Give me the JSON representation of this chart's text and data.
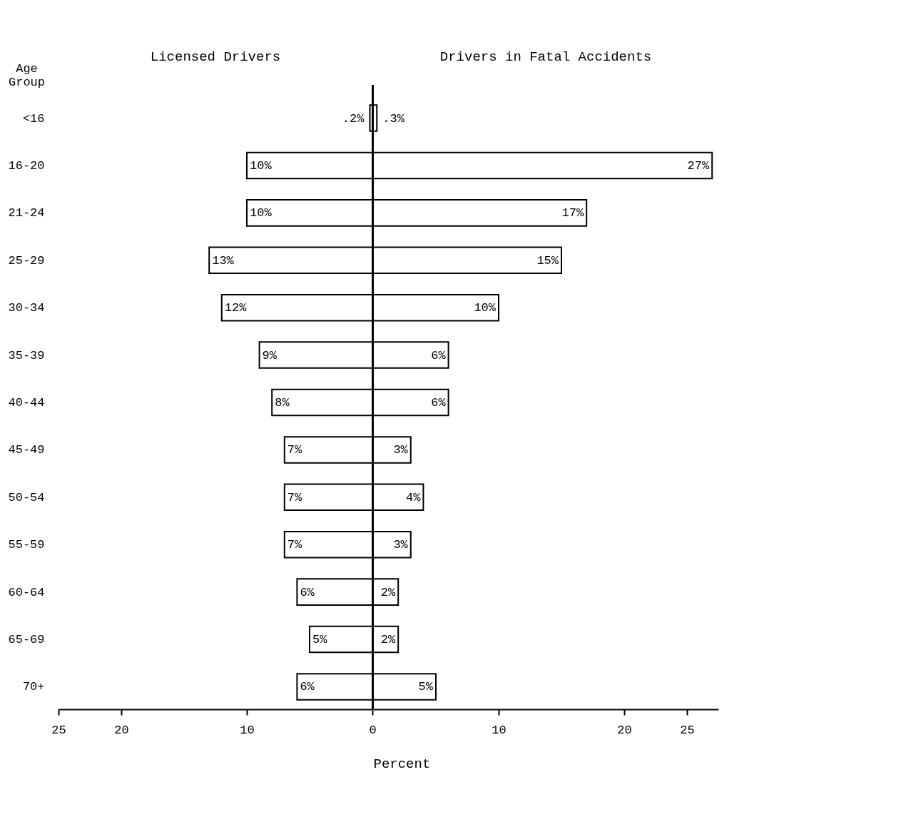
{
  "chart_data": [
    {
      "type": "bar",
      "orientation": "horizontal",
      "title": "Licensed Drivers",
      "ylabel": "Age Group",
      "categories": [
        "<16",
        "16-20",
        "21-24",
        "25-29",
        "30-34",
        "35-39",
        "40-44",
        "45-49",
        "50-54",
        "55-59",
        "60-64",
        "65-69",
        "70+"
      ],
      "values": [
        0.2,
        10,
        10,
        13,
        12,
        9,
        8,
        7,
        7,
        7,
        6,
        5,
        6
      ],
      "value_labels": [
        ".2%",
        "10%",
        "10%",
        "13%",
        "12%",
        "9%",
        "8%",
        "7%",
        "7%",
        "7%",
        "6%",
        "5%",
        "6%"
      ],
      "color": "#ffffff",
      "xlim": [
        25,
        0
      ],
      "xticks": [
        25,
        20,
        10,
        0
      ]
    },
    {
      "type": "bar",
      "orientation": "horizontal",
      "title": "Drivers in Fatal Accidents",
      "xlabel": "Percent",
      "tick_labels": "x",
      "categories": [
        null,
        null,
        null,
        null,
        null,
        null,
        null,
        null,
        null,
        null,
        null,
        null,
        null
      ],
      "values": [
        0.3,
        27,
        17,
        15,
        10,
        6,
        6,
        3,
        4,
        3,
        2,
        2,
        5
      ],
      "value_labels": [
        ".3%",
        "27%",
        "17%",
        "15%",
        "10%",
        "6%",
        "6%",
        "3%",
        "4%",
        "3%",
        "2%",
        "2%",
        "5%"
      ],
      "color": "#ffffff",
      "xlim": [
        0,
        27.5
      ],
      "xticks": [
        10,
        20,
        25
      ]
    }
  ]
}
